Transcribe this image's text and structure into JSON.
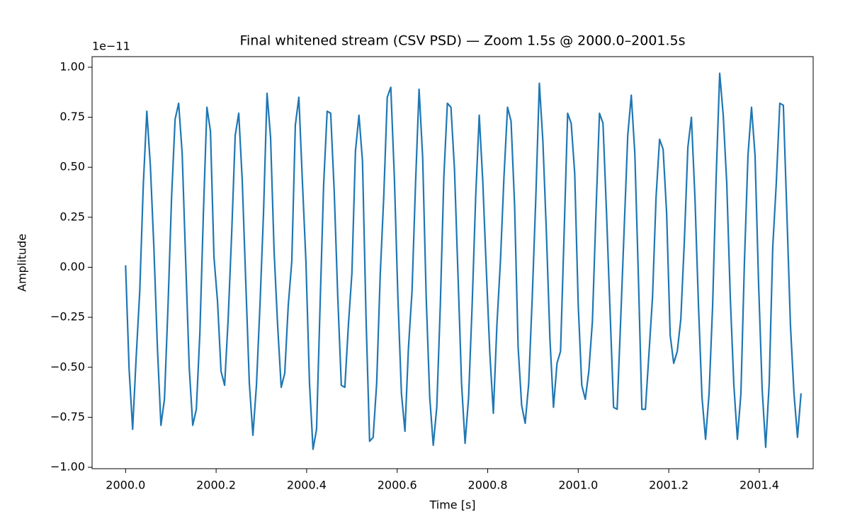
{
  "chart_data": {
    "type": "line",
    "title": "Final whitened stream (CSV PSD) — Zoom 1.5s @ 2000.0–2001.5s",
    "x_label": "Time [s]",
    "y_label": "Amplitude",
    "offset_text": "1e−11",
    "grid": false,
    "xlim": [
      1999.926,
      2001.519
    ],
    "ylim": [
      -1.007,
      1.053
    ],
    "xticks": [
      {
        "value": 2000,
        "label": "2000.0"
      },
      {
        "value": 2000.2,
        "label": "2000.2"
      },
      {
        "value": 2000.4,
        "label": "2000.4"
      },
      {
        "value": 2000.6,
        "label": "2000.6"
      },
      {
        "value": 2000.8,
        "label": "2000.8"
      },
      {
        "value": 2001,
        "label": "2001.0"
      },
      {
        "value": 2001.2,
        "label": "2001.2"
      },
      {
        "value": 2001.4,
        "label": "2001.4"
      }
    ],
    "yticks": [
      {
        "value": -1,
        "label": "−1.00"
      },
      {
        "value": -0.75,
        "label": "−0.75"
      },
      {
        "value": -0.5,
        "label": "−0.50"
      },
      {
        "value": -0.25,
        "label": "−0.25"
      },
      {
        "value": 0,
        "label": "0.00"
      },
      {
        "value": 0.25,
        "label": "0.25"
      },
      {
        "value": 0.5,
        "label": "0.50"
      },
      {
        "value": 0.75,
        "label": "0.75"
      },
      {
        "value": 1,
        "label": "1.00"
      }
    ],
    "x": [
      2000,
      2000.0078,
      2000.0156,
      2000.0234,
      2000.0313,
      2000.0391,
      2000.0469,
      2000.0547,
      2000.0625,
      2000.0703,
      2000.0781,
      2000.0859,
      2000.0938,
      2000.1016,
      2000.1094,
      2000.1172,
      2000.125,
      2000.1328,
      2000.1406,
      2000.1484,
      2000.1563,
      2000.1641,
      2000.1719,
      2000.1797,
      2000.1875,
      2000.1953,
      2000.2031,
      2000.2109,
      2000.2188,
      2000.2266,
      2000.2344,
      2000.2422,
      2000.25,
      2000.2578,
      2000.2656,
      2000.2734,
      2000.2813,
      2000.2891,
      2000.2969,
      2000.3047,
      2000.3125,
      2000.3203,
      2000.3281,
      2000.3359,
      2000.3438,
      2000.3516,
      2000.3594,
      2000.3672,
      2000.375,
      2000.3828,
      2000.3906,
      2000.3984,
      2000.4063,
      2000.4141,
      2000.4219,
      2000.4297,
      2000.4375,
      2000.4453,
      2000.4531,
      2000.4609,
      2000.4688,
      2000.4766,
      2000.4844,
      2000.4922,
      2000.5,
      2000.5078,
      2000.5156,
      2000.5234,
      2000.5313,
      2000.5391,
      2000.5469,
      2000.5547,
      2000.5625,
      2000.5703,
      2000.5781,
      2000.5859,
      2000.5938,
      2000.6016,
      2000.6094,
      2000.6172,
      2000.625,
      2000.6328,
      2000.6406,
      2000.6484,
      2000.6563,
      2000.6641,
      2000.6719,
      2000.6797,
      2000.6875,
      2000.6953,
      2000.7031,
      2000.7109,
      2000.7188,
      2000.7266,
      2000.7344,
      2000.7422,
      2000.75,
      2000.7578,
      2000.7656,
      2000.7734,
      2000.7813,
      2000.7891,
      2000.7969,
      2000.8047,
      2000.8125,
      2000.8203,
      2000.8281,
      2000.8359,
      2000.8438,
      2000.8516,
      2000.8594,
      2000.8672,
      2000.875,
      2000.8828,
      2000.8906,
      2000.8984,
      2000.9063,
      2000.9141,
      2000.9219,
      2000.9297,
      2000.9375,
      2000.9453,
      2000.9531,
      2000.9609,
      2000.9688,
      2000.9766,
      2000.9844,
      2000.9922,
      2001,
      2001.0078,
      2001.0156,
      2001.0234,
      2001.0313,
      2001.0391,
      2001.0469,
      2001.0547,
      2001.0625,
      2001.0703,
      2001.0781,
      2001.0859,
      2001.0938,
      2001.1016,
      2001.1094,
      2001.1172,
      2001.125,
      2001.1328,
      2001.1406,
      2001.1484,
      2001.1563,
      2001.1641,
      2001.1719,
      2001.1797,
      2001.1875,
      2001.1953,
      2001.2031,
      2001.2109,
      2001.2188,
      2001.2266,
      2001.2344,
      2001.2422,
      2001.25,
      2001.2578,
      2001.2656,
      2001.2734,
      2001.2813,
      2001.2891,
      2001.2969,
      2001.3047,
      2001.3125,
      2001.3203,
      2001.3281,
      2001.3359,
      2001.3438,
      2001.3516,
      2001.3594,
      2001.3672,
      2001.375,
      2001.3828,
      2001.3906,
      2001.3984,
      2001.4063,
      2001.4141,
      2001.4219,
      2001.4297,
      2001.4375,
      2001.4453,
      2001.4531,
      2001.4609,
      2001.4688,
      2001.4766,
      2001.4844,
      2001.4922
    ],
    "series": [
      {
        "color": "#1f77b4",
        "values": [
          0.01,
          -0.51,
          -0.81,
          -0.45,
          -0.12,
          0.41,
          0.78,
          0.51,
          0.1,
          -0.4,
          -0.79,
          -0.66,
          -0.19,
          0.35,
          0.74,
          0.82,
          0.57,
          0.03,
          -0.5,
          -0.79,
          -0.71,
          -0.33,
          0.27,
          0.8,
          0.68,
          0.05,
          -0.17,
          -0.52,
          -0.59,
          -0.26,
          0.17,
          0.66,
          0.77,
          0.43,
          -0.08,
          -0.58,
          -0.84,
          -0.59,
          -0.19,
          0.27,
          0.87,
          0.65,
          0.08,
          -0.29,
          -0.6,
          -0.53,
          -0.19,
          0.03,
          0.71,
          0.85,
          0.43,
          0.03,
          -0.58,
          -0.91,
          -0.81,
          -0.19,
          0.41,
          0.78,
          0.77,
          0.38,
          -0.15,
          -0.59,
          -0.6,
          -0.29,
          -0.03,
          0.58,
          0.76,
          0.53,
          -0.26,
          -0.87,
          -0.85,
          -0.58,
          -0.04,
          0.35,
          0.85,
          0.9,
          0.45,
          -0.15,
          -0.63,
          -0.82,
          -0.4,
          -0.12,
          0.42,
          0.89,
          0.55,
          -0.15,
          -0.65,
          -0.89,
          -0.7,
          -0.19,
          0.45,
          0.82,
          0.8,
          0.49,
          -0.04,
          -0.58,
          -0.88,
          -0.65,
          -0.19,
          0.35,
          0.76,
          0.43,
          -0.01,
          -0.43,
          -0.73,
          -0.29,
          0.03,
          0.45,
          0.8,
          0.73,
          0.31,
          -0.4,
          -0.69,
          -0.78,
          -0.58,
          -0.15,
          0.35,
          0.92,
          0.63,
          0.17,
          -0.36,
          -0.7,
          -0.48,
          -0.42,
          0.17,
          0.77,
          0.72,
          0.47,
          -0.19,
          -0.59,
          -0.66,
          -0.52,
          -0.27,
          0.27,
          0.77,
          0.72,
          0.27,
          -0.22,
          -0.7,
          -0.71,
          -0.26,
          0.2,
          0.66,
          0.86,
          0.57,
          -0.04,
          -0.71,
          -0.71,
          -0.43,
          -0.15,
          0.35,
          0.64,
          0.59,
          0.27,
          -0.34,
          -0.48,
          -0.42,
          -0.26,
          0.13,
          0.6,
          0.75,
          0.35,
          -0.19,
          -0.65,
          -0.86,
          -0.63,
          -0.19,
          0.45,
          0.97,
          0.76,
          0.42,
          -0.15,
          -0.59,
          -0.86,
          -0.63,
          0.03,
          0.56,
          0.8,
          0.56,
          -0.08,
          -0.61,
          -0.9,
          -0.58,
          0.1,
          0.42,
          0.82,
          0.81,
          0.27,
          -0.29,
          -0.63,
          -0.85,
          -0.63
        ]
      }
    ]
  }
}
